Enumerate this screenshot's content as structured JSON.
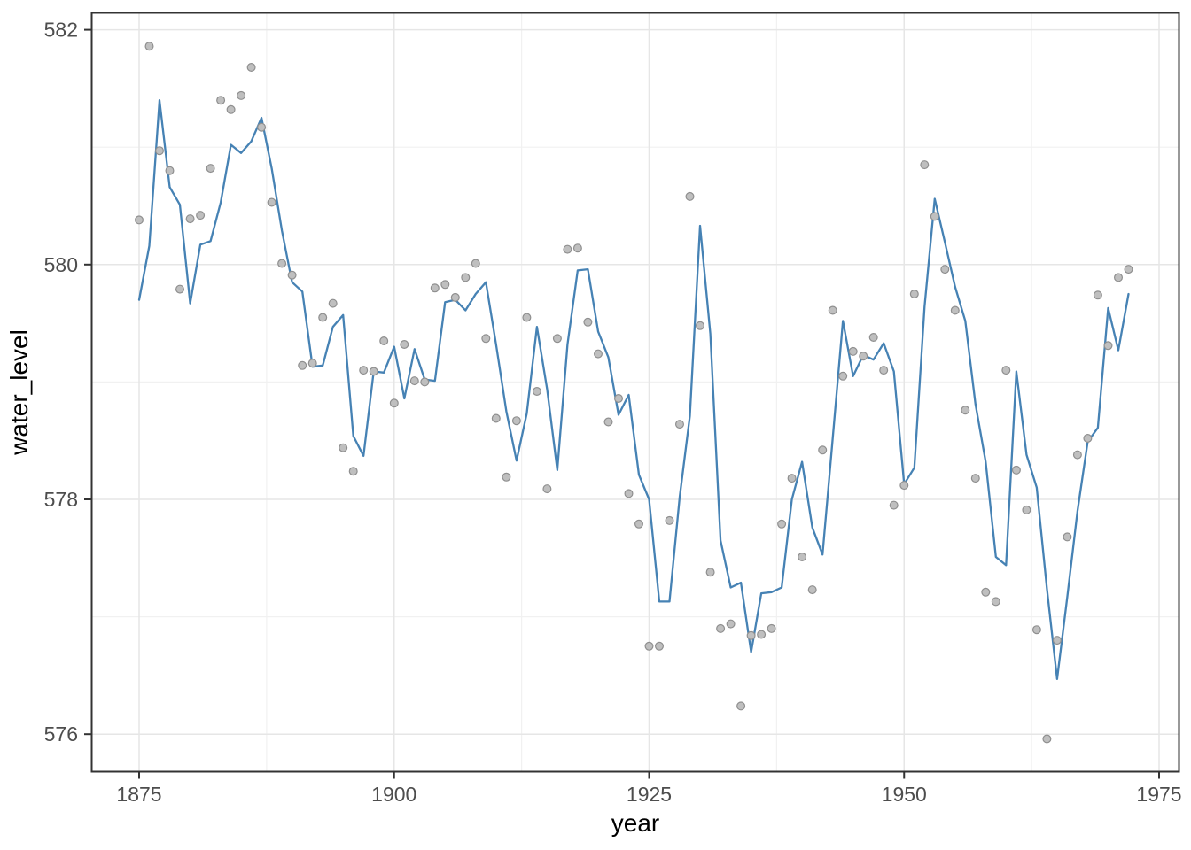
{
  "chart_data": {
    "type": "line",
    "title": "",
    "xlabel": "year",
    "ylabel": "water_level",
    "x_ticks": [
      1875,
      1900,
      1925,
      1950,
      1975
    ],
    "x_minor_ticks": [
      1887.5,
      1912.5,
      1937.5,
      1962.5
    ],
    "y_ticks": [
      576,
      578,
      580,
      582
    ],
    "y_minor_ticks": [
      577,
      579,
      581
    ],
    "xlim": [
      1870.2,
      1976.8
    ],
    "ylim": [
      575.66,
      582.16
    ],
    "grid": "major+minor",
    "legend": "none",
    "x": [
      1875,
      1876,
      1877,
      1878,
      1879,
      1880,
      1881,
      1882,
      1883,
      1884,
      1885,
      1886,
      1887,
      1888,
      1889,
      1890,
      1891,
      1892,
      1893,
      1894,
      1895,
      1896,
      1897,
      1898,
      1899,
      1900,
      1901,
      1902,
      1903,
      1904,
      1905,
      1906,
      1907,
      1908,
      1909,
      1910,
      1911,
      1912,
      1913,
      1914,
      1915,
      1916,
      1917,
      1918,
      1919,
      1920,
      1921,
      1922,
      1923,
      1924,
      1925,
      1926,
      1927,
      1928,
      1929,
      1930,
      1931,
      1932,
      1933,
      1934,
      1935,
      1936,
      1937,
      1938,
      1939,
      1940,
      1941,
      1942,
      1943,
      1944,
      1945,
      1946,
      1947,
      1948,
      1949,
      1950,
      1951,
      1952,
      1953,
      1954,
      1955,
      1956,
      1957,
      1958,
      1959,
      1960,
      1961,
      1962,
      1963,
      1964,
      1965,
      1966,
      1967,
      1968,
      1969,
      1970,
      1971,
      1972
    ],
    "series": [
      {
        "name": "points",
        "type": "scatter",
        "color": "#bfbfbf",
        "edge_color": "#8f8f8f",
        "values": [
          580.38,
          581.86,
          580.97,
          580.8,
          579.79,
          580.39,
          580.42,
          580.82,
          581.4,
          581.32,
          581.44,
          581.68,
          581.17,
          580.53,
          580.01,
          579.91,
          579.14,
          579.16,
          579.55,
          579.67,
          578.44,
          578.24,
          579.1,
          579.09,
          579.35,
          578.82,
          579.32,
          579.01,
          579.0,
          579.8,
          579.83,
          579.72,
          579.89,
          580.01,
          579.37,
          578.69,
          578.19,
          578.67,
          579.55,
          578.92,
          578.09,
          579.37,
          580.13,
          580.14,
          579.51,
          579.24,
          578.66,
          578.86,
          578.05,
          577.79,
          576.75,
          576.75,
          577.82,
          578.64,
          580.58,
          579.48,
          577.38,
          576.9,
          576.94,
          576.24,
          576.84,
          576.85,
          576.9,
          577.79,
          578.18,
          577.51,
          577.23,
          578.42,
          579.61,
          579.05,
          579.26,
          579.22,
          579.38,
          579.1,
          577.95,
          578.12,
          579.75,
          580.85,
          580.41,
          579.96,
          579.61,
          578.76,
          578.18,
          577.21,
          577.13,
          579.1,
          578.25,
          577.91,
          576.89,
          575.96,
          576.8,
          577.68,
          578.38,
          578.52,
          579.74,
          579.31,
          579.89,
          579.96
        ]
      },
      {
        "name": "line",
        "type": "line",
        "color": "#4682b4",
        "values": [
          579.7,
          580.16,
          581.4,
          580.66,
          580.51,
          579.67,
          580.17,
          580.2,
          580.53,
          581.02,
          580.95,
          581.05,
          581.25,
          580.82,
          580.29,
          579.85,
          579.77,
          579.13,
          579.14,
          579.47,
          579.57,
          578.54,
          578.37,
          579.09,
          579.08,
          579.3,
          578.86,
          579.28,
          579.02,
          579.01,
          579.68,
          579.7,
          579.61,
          579.75,
          579.85,
          579.32,
          578.75,
          578.33,
          578.73,
          579.47,
          578.94,
          578.25,
          579.32,
          579.95,
          579.96,
          579.43,
          579.21,
          578.72,
          578.89,
          578.21,
          578.0,
          577.13,
          577.13,
          578.02,
          578.71,
          580.33,
          579.41,
          577.65,
          577.25,
          577.29,
          576.7,
          577.2,
          577.21,
          577.25,
          578.0,
          578.32,
          577.76,
          577.53,
          578.52,
          579.52,
          579.05,
          579.23,
          579.19,
          579.33,
          579.09,
          578.13,
          578.27,
          579.64,
          580.56,
          580.19,
          579.81,
          579.52,
          578.81,
          578.32,
          577.51,
          577.44,
          579.09,
          578.38,
          578.1,
          577.24,
          576.47,
          577.17,
          577.9,
          578.49,
          578.61,
          579.63,
          579.27,
          579.75
        ]
      }
    ]
  },
  "style": {
    "background": "#ffffff",
    "panel_border": "#333333",
    "grid_major": "#e6e6e6",
    "grid_minor": "#f1f1f1",
    "tick_color": "#333333",
    "tick_label_color": "#4d4d4d",
    "axis_title_color": "#000000",
    "line_color": "#4682b4",
    "point_fill": "#bfbfbf",
    "point_stroke": "#8f8f8f"
  }
}
